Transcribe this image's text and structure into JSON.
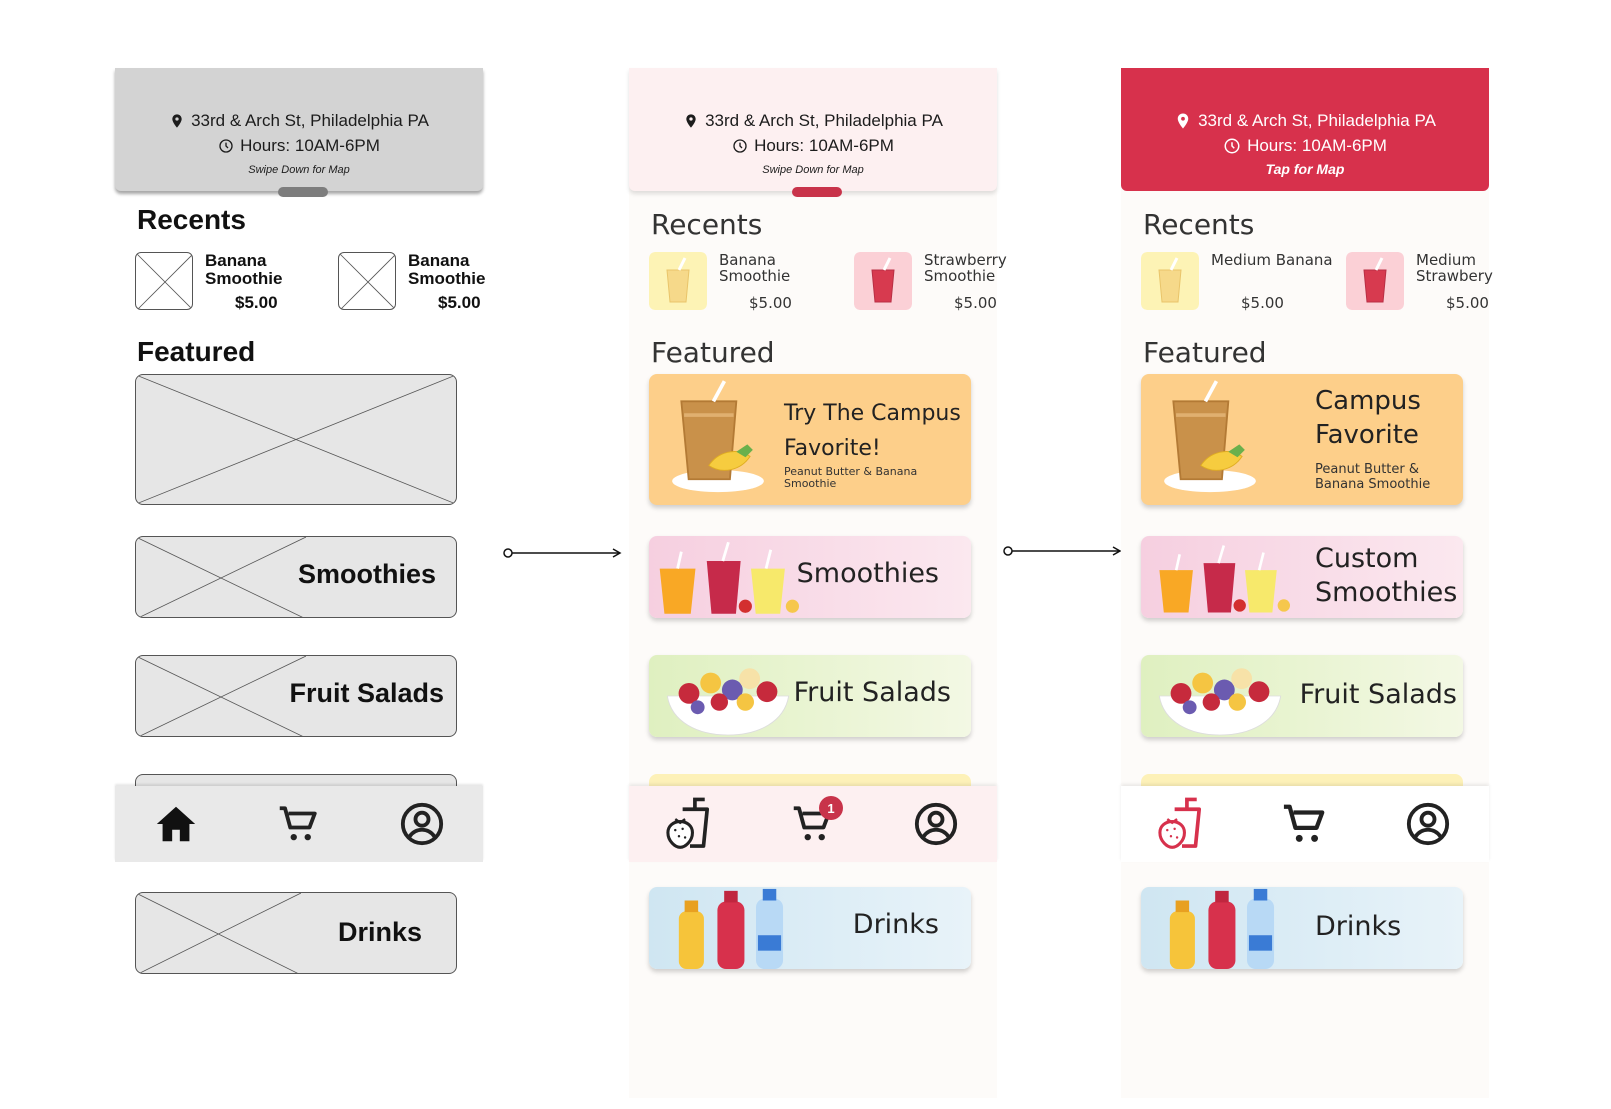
{
  "colors": {
    "accent": "#d7314c",
    "wire_gray": "#d3d3d3",
    "pink_bg": "#fdf0f1",
    "featured_orange": "#fdcf8a"
  },
  "screens": [
    {
      "header": {
        "address": "33rd & Arch St, Philadelphia PA",
        "hours": "Hours: 10AM-6PM",
        "hint": "Swipe Down for Map"
      },
      "recents_title": "Recents",
      "recents": [
        {
          "name": "Banana Smoothie",
          "price": "$5.00"
        },
        {
          "name": "Banana Smoothie",
          "price": "$5.00"
        }
      ],
      "featured_title": "Featured",
      "cards": [
        {
          "label": "Smoothies"
        },
        {
          "label": "Fruit Salads"
        },
        {
          "label": "Drinks"
        }
      ],
      "nav": {
        "icons": [
          "home-icon",
          "cart-icon",
          "profile-icon"
        ]
      }
    },
    {
      "header": {
        "address": "33rd & Arch St, Philadelphia PA",
        "hours": "Hours: 10AM-6PM",
        "hint": "Swipe Down for Map"
      },
      "recents_title": "Recents",
      "recents": [
        {
          "name": "Banana Smoothie",
          "price": "$5.00"
        },
        {
          "name": "Strawberry Smoothie",
          "price": "$5.00"
        }
      ],
      "featured_title": "Featured",
      "hero": {
        "title": "Try The Campus Favorite!",
        "subtitle": "Peanut Butter & Banana Smoothie"
      },
      "cards": [
        {
          "label": "Smoothies"
        },
        {
          "label": "Fruit Salads"
        },
        {
          "label": "Drinks"
        }
      ],
      "nav": {
        "icons": [
          "smoothie-cup-icon",
          "cart-icon",
          "profile-icon"
        ],
        "cart_badge": "1"
      }
    },
    {
      "header": {
        "address": "33rd & Arch St, Philadelphia PA",
        "hours": "Hours: 10AM-6PM",
        "hint": "Tap for Map"
      },
      "recents_title": "Recents",
      "recents": [
        {
          "name": "Medium Banana",
          "price": "$5.00"
        },
        {
          "name": "Medium Strawbery",
          "price": "$5.00"
        }
      ],
      "featured_title": "Featured",
      "hero": {
        "title": "Campus Favorite",
        "subtitle": "Peanut Butter & Banana Smoothie"
      },
      "cards": [
        {
          "label": "Custom Smoothies"
        },
        {
          "label": "Fruit Salads"
        },
        {
          "label": "Drinks"
        }
      ],
      "nav": {
        "icons": [
          "smoothie-cup-icon",
          "cart-icon",
          "profile-icon"
        ]
      }
    }
  ]
}
